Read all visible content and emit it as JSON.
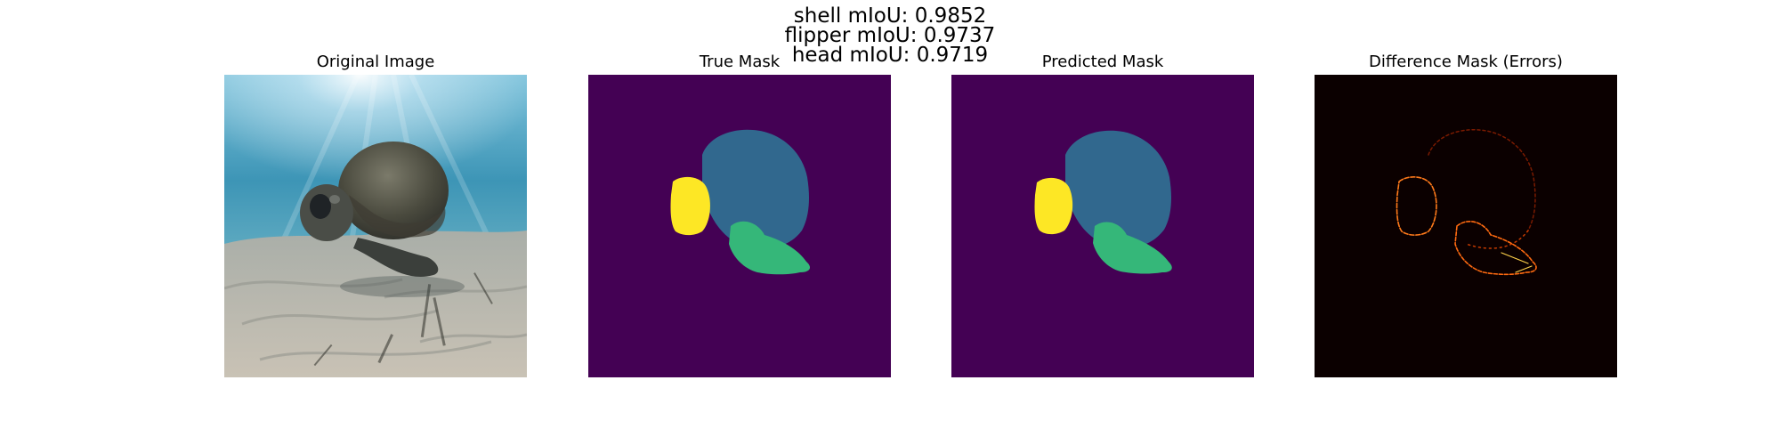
{
  "suptitle": {
    "lines": [
      "shell mIoU: 0.9852",
      "flipper mIoU: 0.9737",
      "head mIoU: 0.9719"
    ]
  },
  "panels": [
    {
      "title": "Original Image",
      "kind": "photo"
    },
    {
      "title": "True Mask",
      "kind": "mask"
    },
    {
      "title": "Predicted Mask",
      "kind": "mask"
    },
    {
      "title": "Difference Mask (Errors)",
      "kind": "difference"
    }
  ],
  "colors": {
    "mask_background": "#440154",
    "shell": "#31688e",
    "flipper": "#35b779",
    "head": "#fde725",
    "difference_background": "#0b0000",
    "error_edge": "#ff7a1a"
  }
}
